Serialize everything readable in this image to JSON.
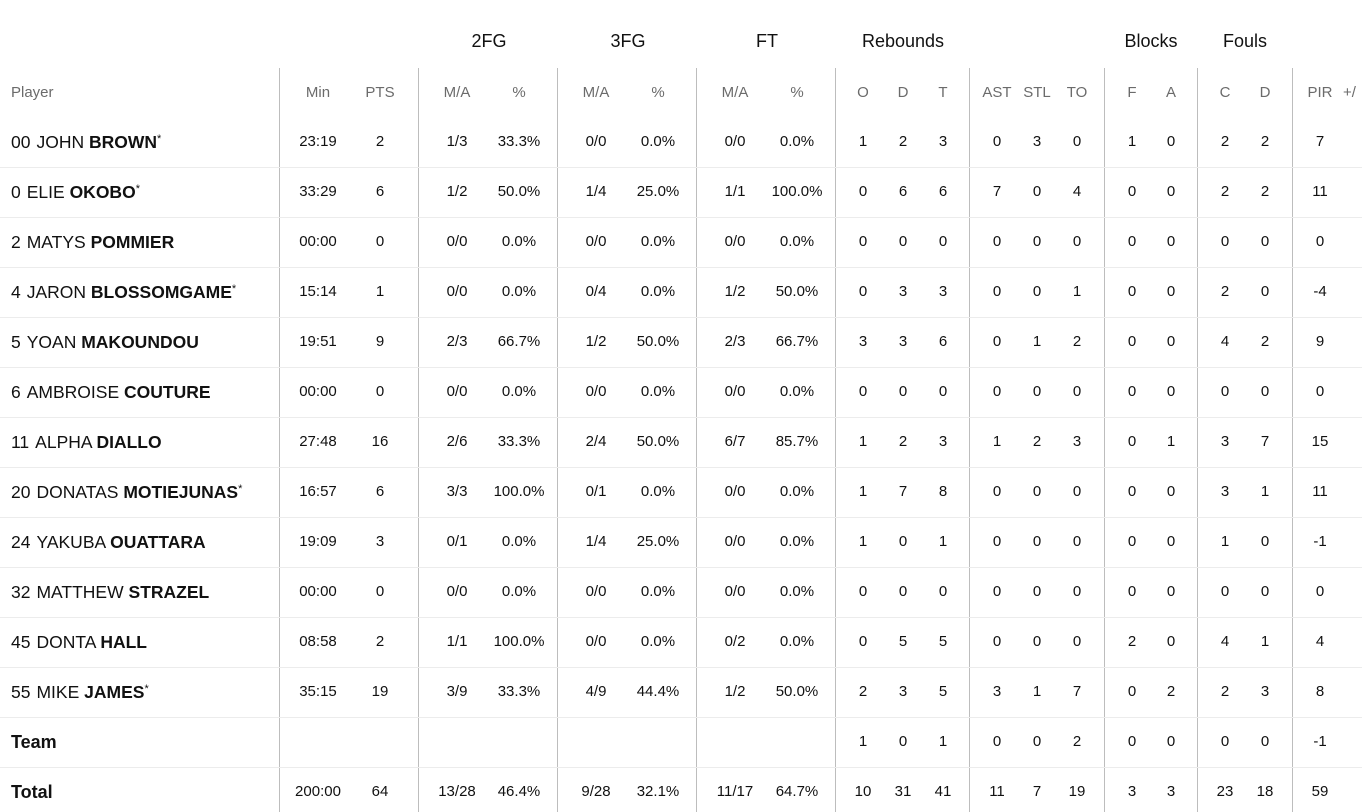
{
  "groups": {
    "fg2": "2FG",
    "fg3": "3FG",
    "ft": "FT",
    "rebounds": "Rebounds",
    "blocks": "Blocks",
    "fouls": "Fouls"
  },
  "headers": {
    "player": "Player",
    "min": "Min",
    "pts": "PTS",
    "fg2_ma": "M/A",
    "fg2_pct": "%",
    "fg3_ma": "M/A",
    "fg3_pct": "%",
    "ft_ma": "M/A",
    "ft_pct": "%",
    "reb_o": "O",
    "reb_d": "D",
    "reb_t": "T",
    "ast": "AST",
    "stl": "STL",
    "to": "TO",
    "blk_f": "F",
    "blk_a": "A",
    "foul_c": "C",
    "foul_d": "D",
    "pir": "PIR",
    "pm": "+/"
  },
  "players": [
    {
      "number": "00",
      "first": "JOHN",
      "last": "BROWN",
      "starter": "*",
      "min": "23:19",
      "pts": "2",
      "fg2_ma": "1/3",
      "fg2_pct": "33.3%",
      "fg3_ma": "0/0",
      "fg3_pct": "0.0%",
      "ft_ma": "0/0",
      "ft_pct": "0.0%",
      "reb_o": "1",
      "reb_d": "2",
      "reb_t": "3",
      "ast": "0",
      "stl": "3",
      "to": "0",
      "blk_f": "1",
      "blk_a": "0",
      "foul_c": "2",
      "foul_d": "2",
      "pir": "7"
    },
    {
      "number": "0",
      "first": "ELIE",
      "last": "OKOBO",
      "starter": "*",
      "min": "33:29",
      "pts": "6",
      "fg2_ma": "1/2",
      "fg2_pct": "50.0%",
      "fg3_ma": "1/4",
      "fg3_pct": "25.0%",
      "ft_ma": "1/1",
      "ft_pct": "100.0%",
      "reb_o": "0",
      "reb_d": "6",
      "reb_t": "6",
      "ast": "7",
      "stl": "0",
      "to": "4",
      "blk_f": "0",
      "blk_a": "0",
      "foul_c": "2",
      "foul_d": "2",
      "pir": "11"
    },
    {
      "number": "2",
      "first": "MATYS",
      "last": "POMMIER",
      "starter": "",
      "min": "00:00",
      "pts": "0",
      "fg2_ma": "0/0",
      "fg2_pct": "0.0%",
      "fg3_ma": "0/0",
      "fg3_pct": "0.0%",
      "ft_ma": "0/0",
      "ft_pct": "0.0%",
      "reb_o": "0",
      "reb_d": "0",
      "reb_t": "0",
      "ast": "0",
      "stl": "0",
      "to": "0",
      "blk_f": "0",
      "blk_a": "0",
      "foul_c": "0",
      "foul_d": "0",
      "pir": "0"
    },
    {
      "number": "4",
      "first": "JARON",
      "last": "BLOSSOMGAME",
      "starter": "*",
      "min": "15:14",
      "pts": "1",
      "fg2_ma": "0/0",
      "fg2_pct": "0.0%",
      "fg3_ma": "0/4",
      "fg3_pct": "0.0%",
      "ft_ma": "1/2",
      "ft_pct": "50.0%",
      "reb_o": "0",
      "reb_d": "3",
      "reb_t": "3",
      "ast": "0",
      "stl": "0",
      "to": "1",
      "blk_f": "0",
      "blk_a": "0",
      "foul_c": "2",
      "foul_d": "0",
      "pir": "-4"
    },
    {
      "number": "5",
      "first": "YOAN",
      "last": "MAKOUNDOU",
      "starter": "",
      "min": "19:51",
      "pts": "9",
      "fg2_ma": "2/3",
      "fg2_pct": "66.7%",
      "fg3_ma": "1/2",
      "fg3_pct": "50.0%",
      "ft_ma": "2/3",
      "ft_pct": "66.7%",
      "reb_o": "3",
      "reb_d": "3",
      "reb_t": "6",
      "ast": "0",
      "stl": "1",
      "to": "2",
      "blk_f": "0",
      "blk_a": "0",
      "foul_c": "4",
      "foul_d": "2",
      "pir": "9"
    },
    {
      "number": "6",
      "first": "AMBROISE",
      "last": "COUTURE",
      "starter": "",
      "min": "00:00",
      "pts": "0",
      "fg2_ma": "0/0",
      "fg2_pct": "0.0%",
      "fg3_ma": "0/0",
      "fg3_pct": "0.0%",
      "ft_ma": "0/0",
      "ft_pct": "0.0%",
      "reb_o": "0",
      "reb_d": "0",
      "reb_t": "0",
      "ast": "0",
      "stl": "0",
      "to": "0",
      "blk_f": "0",
      "blk_a": "0",
      "foul_c": "0",
      "foul_d": "0",
      "pir": "0"
    },
    {
      "number": "11",
      "first": "ALPHA",
      "last": "DIALLO",
      "starter": "",
      "min": "27:48",
      "pts": "16",
      "fg2_ma": "2/6",
      "fg2_pct": "33.3%",
      "fg3_ma": "2/4",
      "fg3_pct": "50.0%",
      "ft_ma": "6/7",
      "ft_pct": "85.7%",
      "reb_o": "1",
      "reb_d": "2",
      "reb_t": "3",
      "ast": "1",
      "stl": "2",
      "to": "3",
      "blk_f": "0",
      "blk_a": "1",
      "foul_c": "3",
      "foul_d": "7",
      "pir": "15"
    },
    {
      "number": "20",
      "first": "DONATAS",
      "last": "MOTIEJUNAS",
      "starter": "*",
      "min": "16:57",
      "pts": "6",
      "fg2_ma": "3/3",
      "fg2_pct": "100.0%",
      "fg3_ma": "0/1",
      "fg3_pct": "0.0%",
      "ft_ma": "0/0",
      "ft_pct": "0.0%",
      "reb_o": "1",
      "reb_d": "7",
      "reb_t": "8",
      "ast": "0",
      "stl": "0",
      "to": "0",
      "blk_f": "0",
      "blk_a": "0",
      "foul_c": "3",
      "foul_d": "1",
      "pir": "11"
    },
    {
      "number": "24",
      "first": "YAKUBA",
      "last": "OUATTARA",
      "starter": "",
      "min": "19:09",
      "pts": "3",
      "fg2_ma": "0/1",
      "fg2_pct": "0.0%",
      "fg3_ma": "1/4",
      "fg3_pct": "25.0%",
      "ft_ma": "0/0",
      "ft_pct": "0.0%",
      "reb_o": "1",
      "reb_d": "0",
      "reb_t": "1",
      "ast": "0",
      "stl": "0",
      "to": "0",
      "blk_f": "0",
      "blk_a": "0",
      "foul_c": "1",
      "foul_d": "0",
      "pir": "-1"
    },
    {
      "number": "32",
      "first": "MATTHEW",
      "last": "STRAZEL",
      "starter": "",
      "min": "00:00",
      "pts": "0",
      "fg2_ma": "0/0",
      "fg2_pct": "0.0%",
      "fg3_ma": "0/0",
      "fg3_pct": "0.0%",
      "ft_ma": "0/0",
      "ft_pct": "0.0%",
      "reb_o": "0",
      "reb_d": "0",
      "reb_t": "0",
      "ast": "0",
      "stl": "0",
      "to": "0",
      "blk_f": "0",
      "blk_a": "0",
      "foul_c": "0",
      "foul_d": "0",
      "pir": "0"
    },
    {
      "number": "45",
      "first": "DONTA",
      "last": "HALL",
      "starter": "",
      "min": "08:58",
      "pts": "2",
      "fg2_ma": "1/1",
      "fg2_pct": "100.0%",
      "fg3_ma": "0/0",
      "fg3_pct": "0.0%",
      "ft_ma": "0/2",
      "ft_pct": "0.0%",
      "reb_o": "0",
      "reb_d": "5",
      "reb_t": "5",
      "ast": "0",
      "stl": "0",
      "to": "0",
      "blk_f": "2",
      "blk_a": "0",
      "foul_c": "4",
      "foul_d": "1",
      "pir": "4"
    },
    {
      "number": "55",
      "first": "MIKE",
      "last": "JAMES",
      "starter": "*",
      "min": "35:15",
      "pts": "19",
      "fg2_ma": "3/9",
      "fg2_pct": "33.3%",
      "fg3_ma": "4/9",
      "fg3_pct": "44.4%",
      "ft_ma": "1/2",
      "ft_pct": "50.0%",
      "reb_o": "2",
      "reb_d": "3",
      "reb_t": "5",
      "ast": "3",
      "stl": "1",
      "to": "7",
      "blk_f": "0",
      "blk_a": "2",
      "foul_c": "2",
      "foul_d": "3",
      "pir": "8"
    }
  ],
  "team_row": {
    "label": "Team",
    "min": "",
    "pts": "",
    "fg2_ma": "",
    "fg2_pct": "",
    "fg3_ma": "",
    "fg3_pct": "",
    "ft_ma": "",
    "ft_pct": "",
    "reb_o": "1",
    "reb_d": "0",
    "reb_t": "1",
    "ast": "0",
    "stl": "0",
    "to": "2",
    "blk_f": "0",
    "blk_a": "0",
    "foul_c": "0",
    "foul_d": "0",
    "pir": "-1"
  },
  "total_row": {
    "label": "Total",
    "min": "200:00",
    "pts": "64",
    "fg2_ma": "13/28",
    "fg2_pct": "46.4%",
    "fg3_ma": "9/28",
    "fg3_pct": "32.1%",
    "ft_ma": "11/17",
    "ft_pct": "64.7%",
    "reb_o": "10",
    "reb_d": "31",
    "reb_t": "41",
    "ast": "11",
    "stl": "7",
    "to": "19",
    "blk_f": "3",
    "blk_a": "3",
    "foul_c": "23",
    "foul_d": "18",
    "pir": "59"
  }
}
